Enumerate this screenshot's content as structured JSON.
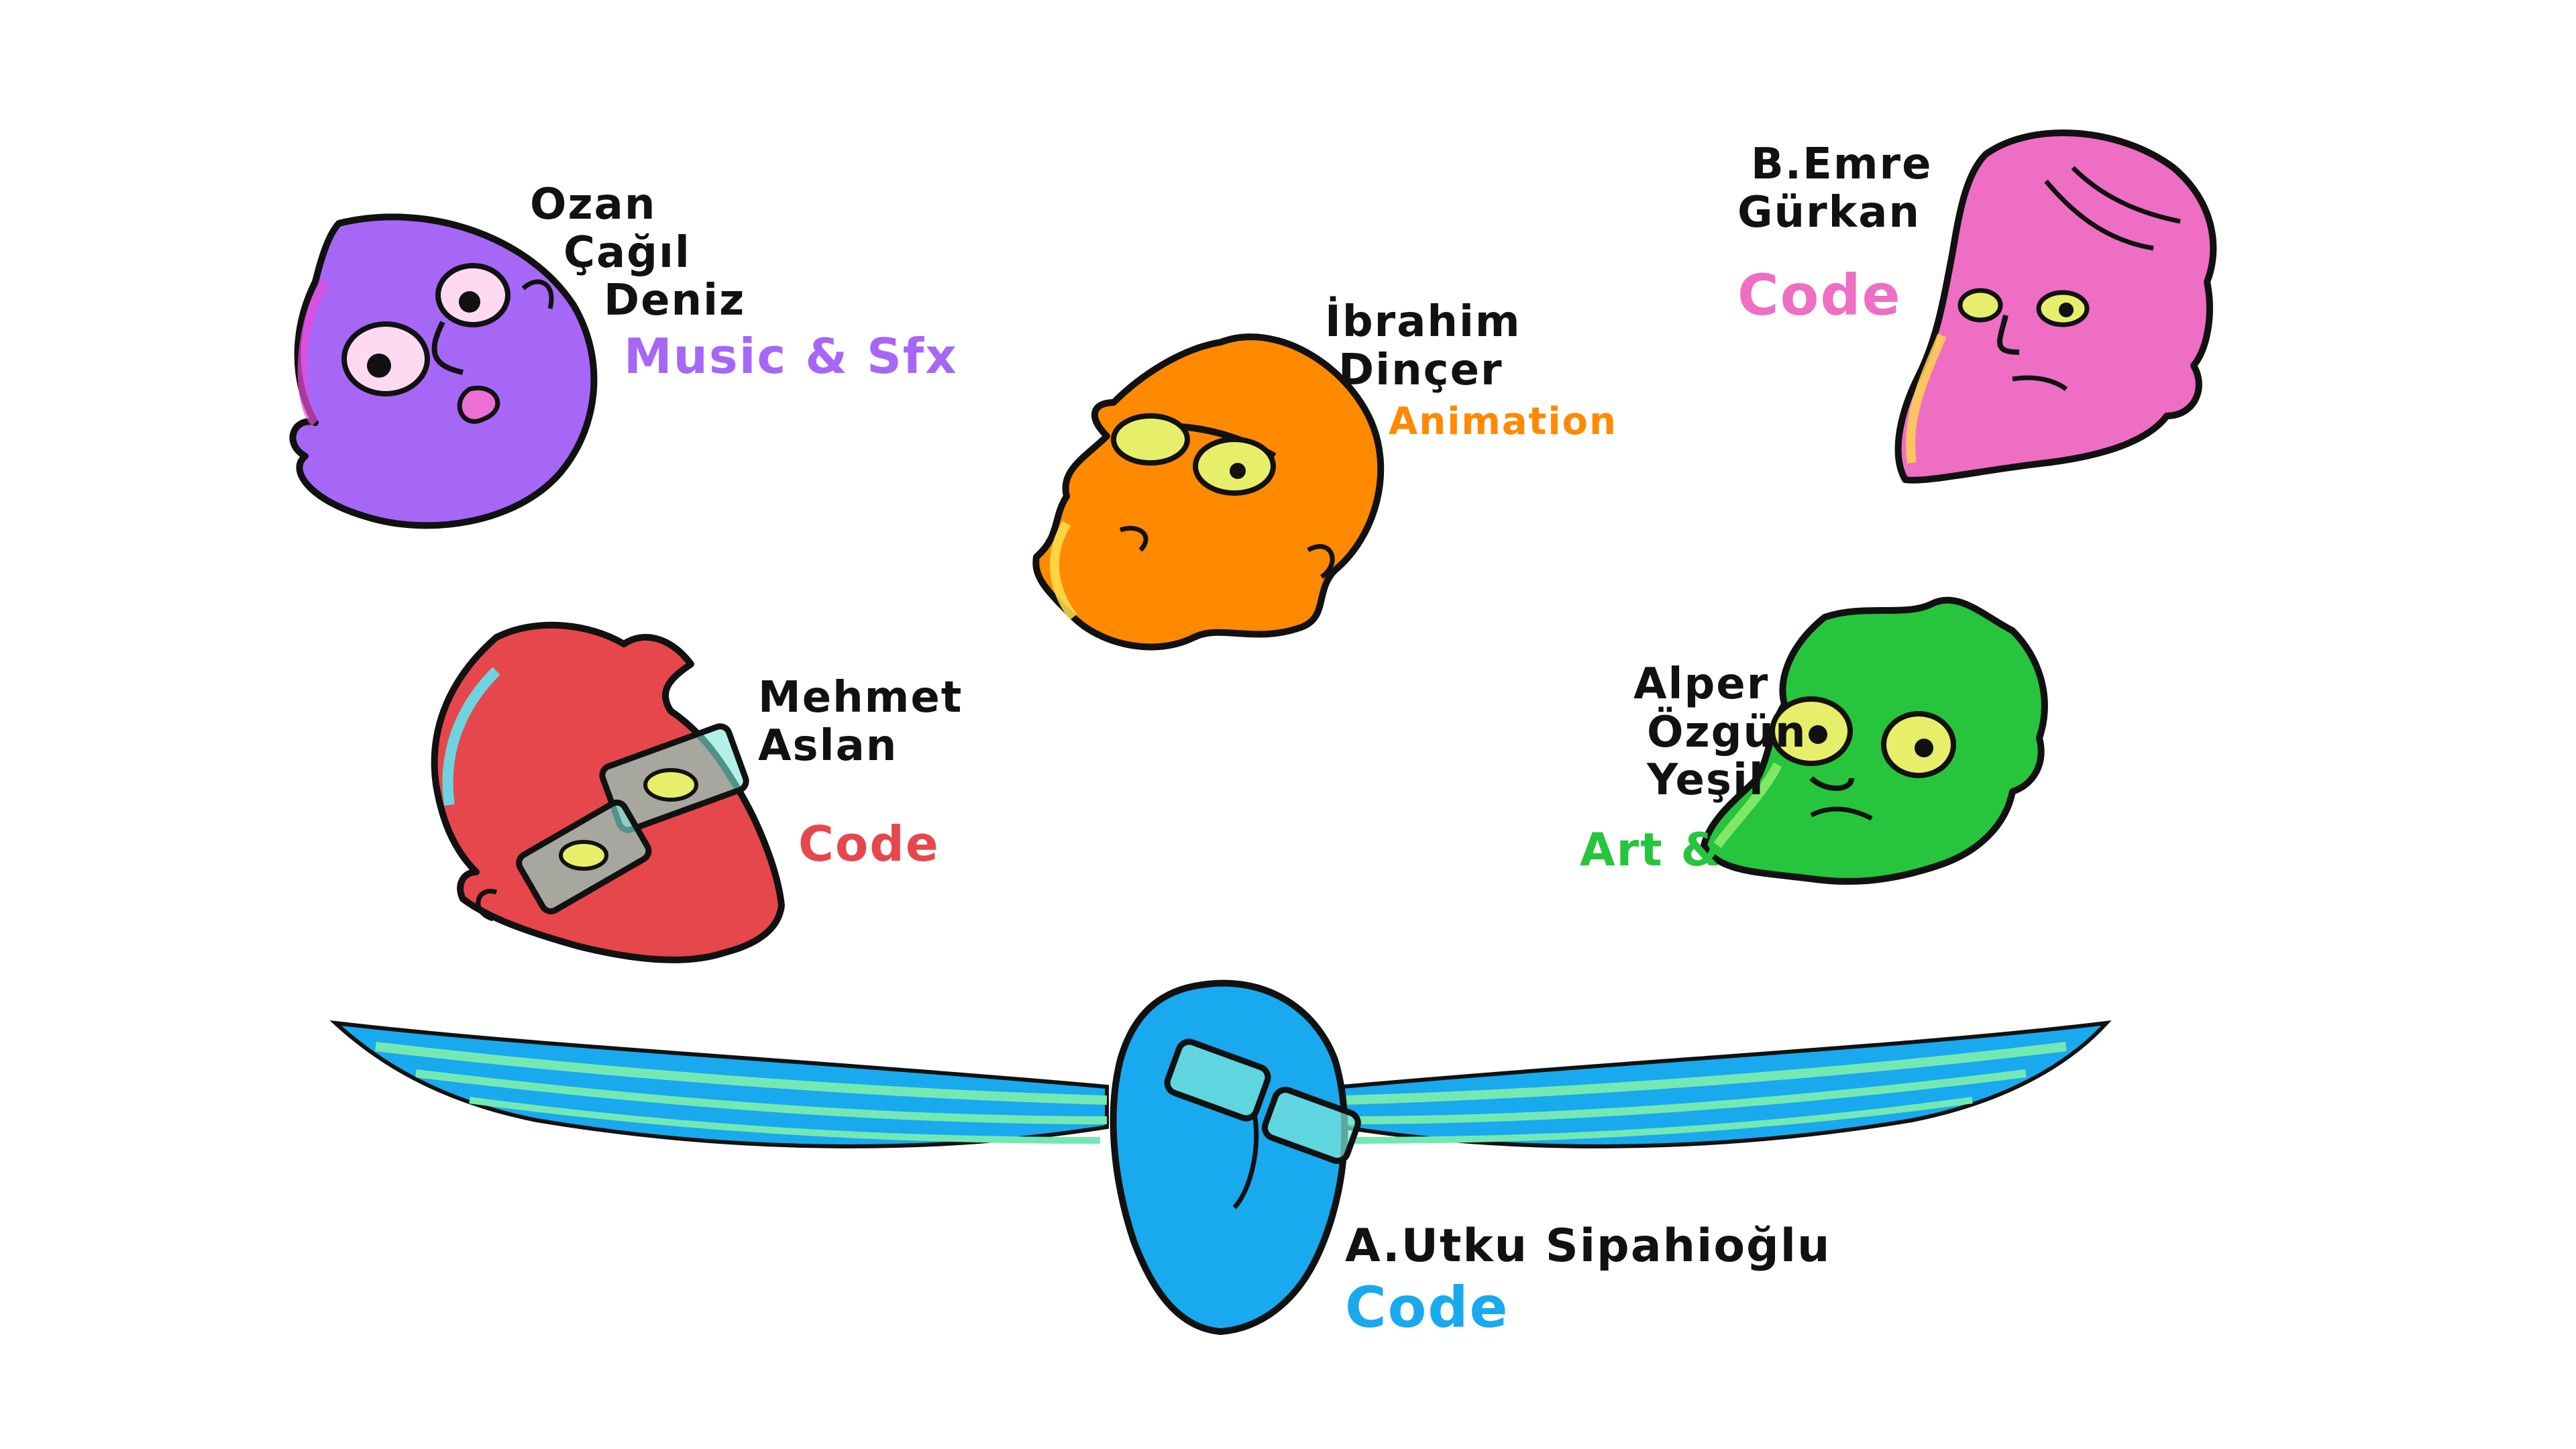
{
  "members": [
    {
      "name_lines": [
        "Ozan",
        "Çağıl",
        "Deniz"
      ],
      "role": "Music & Sfx",
      "color": "#a667f7"
    },
    {
      "name_lines": [
        "İbrahim",
        "Dinçer"
      ],
      "role": "Animation",
      "color": "#ff8a00"
    },
    {
      "name_lines": [
        "B.Emre",
        "Gürkan"
      ],
      "role": "Code",
      "color": "#ee6ec3"
    },
    {
      "name_lines": [
        "Mehmet",
        "Aslan"
      ],
      "role": "Code",
      "color": "#e6474c"
    },
    {
      "name_lines": [
        "Alper",
        "Özgün",
        "Yeşil"
      ],
      "role": "Art & Design",
      "color": "#27c43e"
    },
    {
      "name_lines": [
        "A.Utku Sipahioğlu"
      ],
      "role": "Code",
      "color": "#19a9ee"
    }
  ],
  "colors": {
    "background": "#ffffff",
    "outline": "#111111",
    "eye_yellow": "#e7ef6a",
    "glasses_tint": "#7de8d8",
    "wing_green": "#73e8b3"
  }
}
